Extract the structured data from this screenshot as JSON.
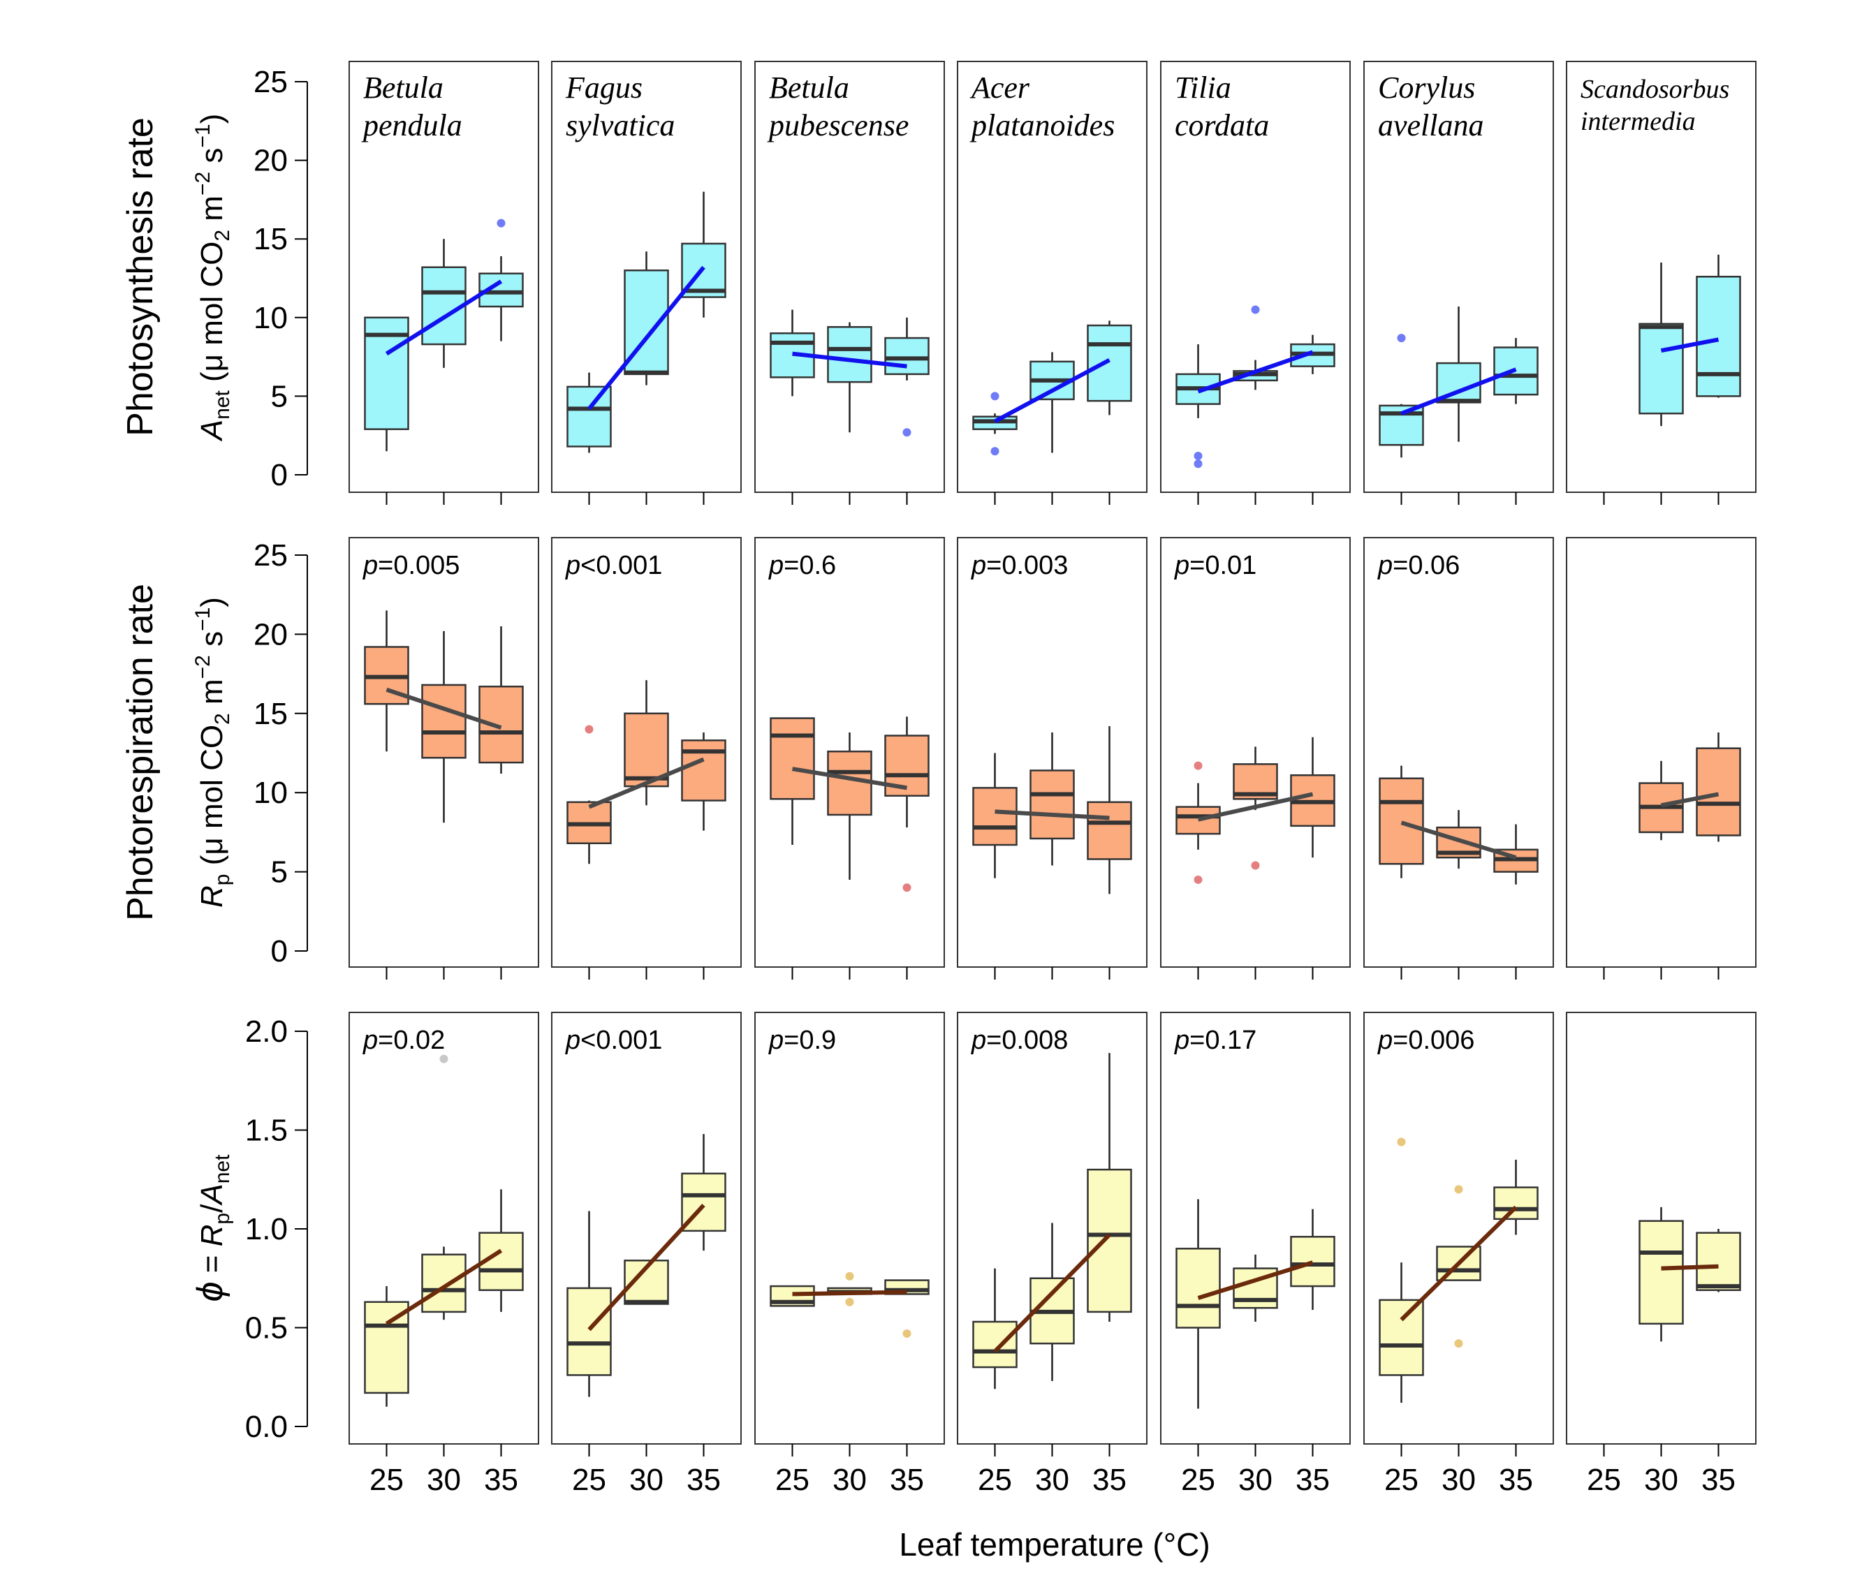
{
  "x_label": "Leaf temperature (°C)",
  "x_ticks": [
    "25",
    "30",
    "35"
  ],
  "species": [
    [
      "Betula",
      "pendula"
    ],
    [
      "Fagus",
      "sylvatica"
    ],
    [
      "Betula",
      "pubescense"
    ],
    [
      "Acer",
      "platanoides"
    ],
    [
      "Tilia",
      "cordata"
    ],
    [
      "Corylus",
      "avellana"
    ],
    [
      "Scandosorbus",
      "intermedia"
    ]
  ],
  "colors": {
    "box_top": "#9ef6fb",
    "box_mid": "#fcab7f",
    "box_bot": "#fcfbbf",
    "line_top": "#1111ee",
    "line_mid": "#4a4a4a",
    "line_bot": "#6b2a0c",
    "outlier_top": "#6f7bf7",
    "outlier_mid": "#e57f7f",
    "outlier_bot": "#e8c67a",
    "outlier_bot_gray": "#c8c8c8"
  },
  "chart_data": [
    {
      "type": "box",
      "row": "top",
      "ylabel_line1": "Photosynthesis rate",
      "ylabel_sym": "A",
      "ylabel_sub": "net",
      "ylabel_unit_pre": "(μ mol  CO",
      "ylabel_unit_sub": "2",
      "ylabel_unit_post": "  m",
      "ylabel_unit_sup1": "−2",
      "ylabel_unit_s": " s",
      "ylabel_unit_sup2": "−1",
      "ylabel_unit_close": ")",
      "ylim": [
        0,
        25
      ],
      "yticks": [
        "0",
        "5",
        "10",
        "15",
        "20",
        "25"
      ],
      "panels": [
        {
          "species": "Betula pendula",
          "boxes": [
            {
              "x": 25,
              "q1": 2.9,
              "median": 8.9,
              "q3": 10.0,
              "lo": 1.5,
              "hi": 10.0
            },
            {
              "x": 30,
              "q1": 8.3,
              "median": 11.6,
              "q3": 13.2,
              "lo": 6.8,
              "hi": 15.0
            },
            {
              "x": 35,
              "q1": 10.7,
              "median": 11.6,
              "q3": 12.8,
              "lo": 8.5,
              "hi": 13.9
            }
          ],
          "outliers": [
            [
              35,
              16.0
            ]
          ],
          "trend": [
            7.7,
            12.3
          ]
        },
        {
          "species": "Fagus sylvatica",
          "boxes": [
            {
              "x": 25,
              "q1": 1.8,
              "median": 4.2,
              "q3": 5.6,
              "lo": 1.4,
              "hi": 6.5
            },
            {
              "x": 30,
              "q1": 6.4,
              "median": 6.5,
              "q3": 13.0,
              "lo": 5.7,
              "hi": 14.2
            },
            {
              "x": 35,
              "q1": 11.3,
              "median": 11.7,
              "q3": 14.7,
              "lo": 10.0,
              "hi": 18.0
            }
          ],
          "outliers": [],
          "trend": [
            4.2,
            13.2
          ]
        },
        {
          "species": "Betula pubescense",
          "boxes": [
            {
              "x": 25,
              "q1": 6.2,
              "median": 8.4,
              "q3": 9.0,
              "lo": 5.0,
              "hi": 10.5
            },
            {
              "x": 30,
              "q1": 5.9,
              "median": 8.0,
              "q3": 9.4,
              "lo": 2.7,
              "hi": 9.7
            },
            {
              "x": 35,
              "q1": 6.4,
              "median": 7.4,
              "q3": 8.7,
              "lo": 6.0,
              "hi": 10.0
            }
          ],
          "outliers": [
            [
              35,
              2.7
            ]
          ],
          "trend": [
            7.7,
            6.9
          ]
        },
        {
          "species": "Acer platanoides",
          "boxes": [
            {
              "x": 25,
              "q1": 2.9,
              "median": 3.4,
              "q3": 3.7,
              "lo": 2.6,
              "hi": 3.9
            },
            {
              "x": 30,
              "q1": 4.8,
              "median": 6.0,
              "q3": 7.2,
              "lo": 1.4,
              "hi": 7.8
            },
            {
              "x": 35,
              "q1": 4.7,
              "median": 8.3,
              "q3": 9.5,
              "lo": 3.8,
              "hi": 9.8
            }
          ],
          "outliers": [
            [
              25,
              5.0
            ],
            [
              25,
              1.5
            ]
          ],
          "trend": [
            3.4,
            7.3
          ]
        },
        {
          "species": "Tilia cordata",
          "boxes": [
            {
              "x": 25,
              "q1": 4.5,
              "median": 5.5,
              "q3": 6.4,
              "lo": 3.6,
              "hi": 8.3
            },
            {
              "x": 30,
              "q1": 6.0,
              "median": 6.4,
              "q3": 6.6,
              "lo": 5.4,
              "hi": 7.3
            },
            {
              "x": 35,
              "q1": 6.9,
              "median": 7.7,
              "q3": 8.3,
              "lo": 6.4,
              "hi": 8.9
            }
          ],
          "outliers": [
            [
              25,
              1.2
            ],
            [
              25,
              0.7
            ],
            [
              30,
              10.5
            ]
          ],
          "trend": [
            5.3,
            7.8
          ]
        },
        {
          "species": "Corylus avellana",
          "boxes": [
            {
              "x": 25,
              "q1": 1.9,
              "median": 3.9,
              "q3": 4.4,
              "lo": 1.1,
              "hi": 4.5
            },
            {
              "x": 30,
              "q1": 4.6,
              "median": 4.7,
              "q3": 7.1,
              "lo": 2.1,
              "hi": 10.7
            },
            {
              "x": 35,
              "q1": 5.1,
              "median": 6.3,
              "q3": 8.1,
              "lo": 4.5,
              "hi": 8.7
            }
          ],
          "outliers": [
            [
              25,
              8.7
            ]
          ],
          "trend": [
            3.9,
            6.7
          ]
        },
        {
          "species": "Scandosorbus intermedia",
          "boxes": [
            {
              "x": 30,
              "q1": 3.9,
              "median": 9.4,
              "q3": 9.6,
              "lo": 3.1,
              "hi": 13.5
            },
            {
              "x": 35,
              "q1": 5.0,
              "median": 6.4,
              "q3": 12.6,
              "lo": 4.9,
              "hi": 14.0
            }
          ],
          "outliers": [],
          "trend_x": [
            30,
            35
          ],
          "trend": [
            7.9,
            8.6
          ]
        }
      ]
    },
    {
      "type": "box",
      "row": "mid",
      "ylabel_line1": "Photorespiration rate",
      "ylabel_sym": "R",
      "ylabel_sub": "p",
      "ylabel_unit_pre": "(μ mol  CO",
      "ylabel_unit_sub": "2",
      "ylabel_unit_post": "  m",
      "ylabel_unit_sup1": "−2",
      "ylabel_unit_s": " s",
      "ylabel_unit_sup2": "−1",
      "ylabel_unit_close": ")",
      "ylim": [
        0,
        25
      ],
      "yticks": [
        "0",
        "5",
        "10",
        "15",
        "20",
        "25"
      ],
      "panels": [
        {
          "species": "Betula pendula",
          "p_op": "=",
          "p_val": "0.005",
          "boxes": [
            {
              "x": 25,
              "q1": 15.6,
              "median": 17.3,
              "q3": 19.2,
              "lo": 12.6,
              "hi": 21.5
            },
            {
              "x": 30,
              "q1": 12.2,
              "median": 13.8,
              "q3": 16.8,
              "lo": 8.1,
              "hi": 20.2
            },
            {
              "x": 35,
              "q1": 11.9,
              "median": 13.8,
              "q3": 16.7,
              "lo": 11.2,
              "hi": 20.5
            }
          ],
          "outliers": [],
          "trend": [
            16.5,
            14.1
          ]
        },
        {
          "species": "Fagus sylvatica",
          "p_op": "<",
          "p_val": "0.001",
          "boxes": [
            {
              "x": 25,
              "q1": 6.8,
              "median": 8.0,
              "q3": 9.4,
              "lo": 5.5,
              "hi": 9.5
            },
            {
              "x": 30,
              "q1": 10.4,
              "median": 10.9,
              "q3": 15.0,
              "lo": 9.2,
              "hi": 17.1
            },
            {
              "x": 35,
              "q1": 9.5,
              "median": 12.6,
              "q3": 13.3,
              "lo": 7.6,
              "hi": 13.8
            }
          ],
          "outliers": [
            [
              25,
              14.0
            ]
          ],
          "trend": [
            9.1,
            12.1
          ]
        },
        {
          "species": "Betula pubescense",
          "p_op": "=",
          "p_val": "0.6",
          "boxes": [
            {
              "x": 25,
              "q1": 9.6,
              "median": 13.6,
              "q3": 14.7,
              "lo": 6.7,
              "hi": 14.7
            },
            {
              "x": 30,
              "q1": 8.6,
              "median": 11.3,
              "q3": 12.6,
              "lo": 4.5,
              "hi": 13.8
            },
            {
              "x": 35,
              "q1": 9.8,
              "median": 11.1,
              "q3": 13.6,
              "lo": 7.8,
              "hi": 14.8
            }
          ],
          "outliers": [
            [
              35,
              4.0
            ]
          ],
          "trend": [
            11.5,
            10.3
          ]
        },
        {
          "species": "Acer platanoides",
          "p_op": "=",
          "p_val": "0.003",
          "boxes": [
            {
              "x": 25,
              "q1": 6.7,
              "median": 7.8,
              "q3": 10.3,
              "lo": 4.6,
              "hi": 12.5
            },
            {
              "x": 30,
              "q1": 7.1,
              "median": 9.9,
              "q3": 11.4,
              "lo": 5.4,
              "hi": 13.8
            },
            {
              "x": 35,
              "q1": 5.8,
              "median": 8.1,
              "q3": 9.4,
              "lo": 3.6,
              "hi": 14.2
            }
          ],
          "outliers": [],
          "trend": [
            8.8,
            8.4
          ]
        },
        {
          "species": "Tilia cordata",
          "p_op": "=",
          "p_val": "0.01",
          "boxes": [
            {
              "x": 25,
              "q1": 7.4,
              "median": 8.5,
              "q3": 9.1,
              "lo": 6.4,
              "hi": 10.6
            },
            {
              "x": 30,
              "q1": 9.6,
              "median": 9.9,
              "q3": 11.8,
              "lo": 8.9,
              "hi": 12.9
            },
            {
              "x": 35,
              "q1": 7.9,
              "median": 9.4,
              "q3": 11.1,
              "lo": 5.9,
              "hi": 13.5
            }
          ],
          "outliers": [
            [
              25,
              11.7
            ],
            [
              25,
              4.5
            ],
            [
              30,
              5.4
            ]
          ],
          "trend": [
            8.3,
            9.9
          ]
        },
        {
          "species": "Corylus avellana",
          "p_op": "=",
          "p_val": "0.06",
          "boxes": [
            {
              "x": 25,
              "q1": 5.5,
              "median": 9.4,
              "q3": 10.9,
              "lo": 4.6,
              "hi": 11.7
            },
            {
              "x": 30,
              "q1": 5.9,
              "median": 6.2,
              "q3": 7.8,
              "lo": 5.2,
              "hi": 8.9
            },
            {
              "x": 35,
              "q1": 5.0,
              "median": 5.8,
              "q3": 6.4,
              "lo": 4.2,
              "hi": 8.0
            }
          ],
          "outliers": [],
          "trend": [
            8.1,
            5.9
          ]
        },
        {
          "species": "Scandosorbus intermedia",
          "boxes": [
            {
              "x": 30,
              "q1": 7.5,
              "median": 9.1,
              "q3": 10.6,
              "lo": 7.0,
              "hi": 12.0
            },
            {
              "x": 35,
              "q1": 7.3,
              "median": 9.3,
              "q3": 12.8,
              "lo": 6.9,
              "hi": 13.8
            }
          ],
          "outliers": [],
          "trend_x": [
            30,
            35
          ],
          "trend": [
            9.2,
            9.9
          ]
        }
      ]
    },
    {
      "type": "box",
      "row": "bot",
      "ylabel_phi": "ϕ",
      "ylabel_eq": " =  ",
      "ylabel_num": "R",
      "ylabel_num_sub": "p",
      "ylabel_slash": "/",
      "ylabel_den": "A",
      "ylabel_den_sub": "net",
      "ylim": [
        0,
        2.0
      ],
      "yticks": [
        "0.0",
        "0.5",
        "1.0",
        "1.5",
        "2.0"
      ],
      "panels": [
        {
          "species": "Betula pendula",
          "p_op": "=",
          "p_val": "0.02",
          "boxes": [
            {
              "x": 25,
              "q1": 0.17,
              "median": 0.51,
              "q3": 0.63,
              "lo": 0.1,
              "hi": 0.71
            },
            {
              "x": 30,
              "q1": 0.58,
              "median": 0.69,
              "q3": 0.87,
              "lo": 0.54,
              "hi": 0.91
            },
            {
              "x": 35,
              "q1": 0.69,
              "median": 0.79,
              "q3": 0.98,
              "lo": 0.58,
              "hi": 1.2
            }
          ],
          "outliers": [
            [
              30,
              1.86
            ]
          ],
          "trend": [
            0.52,
            0.89
          ]
        },
        {
          "species": "Fagus sylvatica",
          "p_op": "<",
          "p_val": "0.001",
          "boxes": [
            {
              "x": 25,
              "q1": 0.26,
              "median": 0.42,
              "q3": 0.7,
              "lo": 0.15,
              "hi": 1.09
            },
            {
              "x": 30,
              "q1": 0.62,
              "median": 0.63,
              "q3": 0.84,
              "lo": 0.62,
              "hi": 0.84
            },
            {
              "x": 35,
              "q1": 0.99,
              "median": 1.17,
              "q3": 1.28,
              "lo": 0.89,
              "hi": 1.48
            }
          ],
          "outliers": [],
          "trend": [
            0.49,
            1.12
          ]
        },
        {
          "species": "Betula pubescense",
          "p_op": "=",
          "p_val": "0.9",
          "boxes": [
            {
              "x": 25,
              "q1": 0.61,
              "median": 0.63,
              "q3": 0.71,
              "lo": 0.61,
              "hi": 0.71
            },
            {
              "x": 30,
              "q1": 0.67,
              "median": 0.68,
              "q3": 0.7,
              "lo": 0.67,
              "hi": 0.7
            },
            {
              "x": 35,
              "q1": 0.67,
              "median": 0.69,
              "q3": 0.74,
              "lo": 0.67,
              "hi": 0.74
            }
          ],
          "outliers": [
            [
              30,
              0.76
            ],
            [
              30,
              0.63
            ],
            [
              35,
              0.47
            ]
          ],
          "trend": [
            0.67,
            0.68
          ]
        },
        {
          "species": "Acer platanoides",
          "p_op": "=",
          "p_val": "0.008",
          "boxes": [
            {
              "x": 25,
              "q1": 0.3,
              "median": 0.38,
              "q3": 0.53,
              "lo": 0.19,
              "hi": 0.8
            },
            {
              "x": 30,
              "q1": 0.42,
              "median": 0.58,
              "q3": 0.75,
              "lo": 0.23,
              "hi": 1.03
            },
            {
              "x": 35,
              "q1": 0.58,
              "median": 0.97,
              "q3": 1.3,
              "lo": 0.53,
              "hi": 1.89
            }
          ],
          "outliers": [],
          "trend": [
            0.38,
            0.97
          ]
        },
        {
          "species": "Tilia cordata",
          "p_op": "=",
          "p_val": "0.17",
          "boxes": [
            {
              "x": 25,
              "q1": 0.5,
              "median": 0.61,
              "q3": 0.9,
              "lo": 0.09,
              "hi": 1.15
            },
            {
              "x": 30,
              "q1": 0.6,
              "median": 0.64,
              "q3": 0.8,
              "lo": 0.53,
              "hi": 0.87
            },
            {
              "x": 35,
              "q1": 0.71,
              "median": 0.82,
              "q3": 0.96,
              "lo": 0.59,
              "hi": 1.1
            }
          ],
          "outliers": [],
          "trend": [
            0.65,
            0.83
          ]
        },
        {
          "species": "Corylus avellana",
          "p_op": "=",
          "p_val": "0.006",
          "boxes": [
            {
              "x": 25,
              "q1": 0.26,
              "median": 0.41,
              "q3": 0.64,
              "lo": 0.12,
              "hi": 0.83
            },
            {
              "x": 30,
              "q1": 0.74,
              "median": 0.79,
              "q3": 0.91,
              "lo": 0.74,
              "hi": 0.91
            },
            {
              "x": 35,
              "q1": 1.05,
              "median": 1.1,
              "q3": 1.21,
              "lo": 0.97,
              "hi": 1.35
            }
          ],
          "outliers": [
            [
              25,
              1.44
            ],
            [
              30,
              1.2
            ],
            [
              30,
              0.42
            ]
          ],
          "trend": [
            0.54,
            1.11
          ]
        },
        {
          "species": "Scandosorbus intermedia",
          "boxes": [
            {
              "x": 30,
              "q1": 0.52,
              "median": 0.88,
              "q3": 1.04,
              "lo": 0.43,
              "hi": 1.11
            },
            {
              "x": 35,
              "q1": 0.69,
              "median": 0.71,
              "q3": 0.98,
              "lo": 0.68,
              "hi": 1.0
            }
          ],
          "outliers": [],
          "trend_x": [
            30,
            35
          ],
          "trend": [
            0.8,
            0.81
          ]
        }
      ]
    }
  ]
}
